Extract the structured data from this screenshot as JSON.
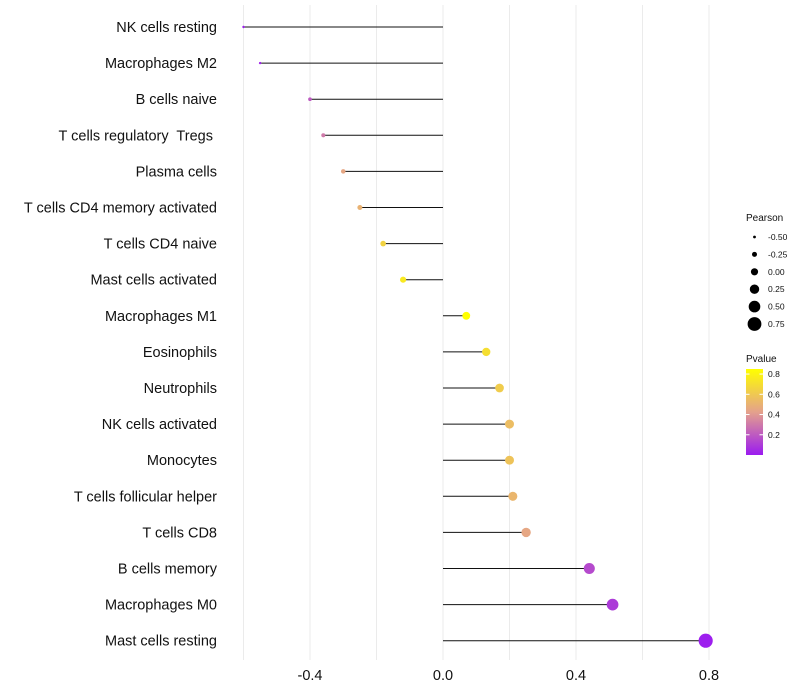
{
  "chart_data": {
    "type": "lollipop",
    "title": "",
    "xlabel": "",
    "ylabel": "",
    "xlim": [
      -0.6,
      0.8
    ],
    "xticks": [
      "-0.4",
      "0.0",
      "0.4",
      "0.8"
    ],
    "xtick_values": [
      -0.4,
      0.0,
      0.4,
      0.8
    ],
    "grid": true,
    "categories": [
      "NK cells resting",
      "Macrophages M2",
      "B cells naive",
      "T cells regulatory  Tregs ",
      "Plasma cells",
      "T cells CD4 memory activated",
      "T cells CD4 naive",
      "Mast cells activated",
      "Macrophages M1",
      "Eosinophils",
      "Neutrophils",
      "NK cells activated",
      "Monocytes",
      "T cells follicular helper",
      "T cells CD8",
      "B cells memory",
      "Macrophages M0",
      "Mast cells resting"
    ],
    "pearson": [
      -0.6,
      -0.55,
      -0.4,
      -0.36,
      -0.3,
      -0.25,
      -0.18,
      -0.12,
      0.07,
      0.13,
      0.17,
      0.2,
      0.2,
      0.21,
      0.25,
      0.44,
      0.51,
      0.79
    ],
    "pvalue": [
      0.01,
      0.02,
      0.2,
      0.3,
      0.45,
      0.5,
      0.65,
      0.75,
      0.85,
      0.7,
      0.62,
      0.55,
      0.58,
      0.52,
      0.45,
      0.15,
      0.1,
      0.01
    ],
    "legend_size": {
      "title": "Pearson",
      "labels": [
        "-0.50",
        "-0.25",
        "0.00",
        "0.25",
        "0.50",
        "0.75"
      ],
      "values": [
        -0.5,
        -0.25,
        0.0,
        0.25,
        0.5,
        0.75
      ]
    },
    "legend_color": {
      "title": "Pvalue",
      "labels": [
        "0.8",
        "0.6",
        "0.4",
        "0.2"
      ],
      "values": [
        0.8,
        0.6,
        0.4,
        0.2
      ],
      "range": [
        0.0,
        0.85
      ],
      "low_color": "#9b1bf0",
      "mid_color": "#e4a18c",
      "high_color": "#ffff00"
    },
    "legend_position": "right"
  }
}
